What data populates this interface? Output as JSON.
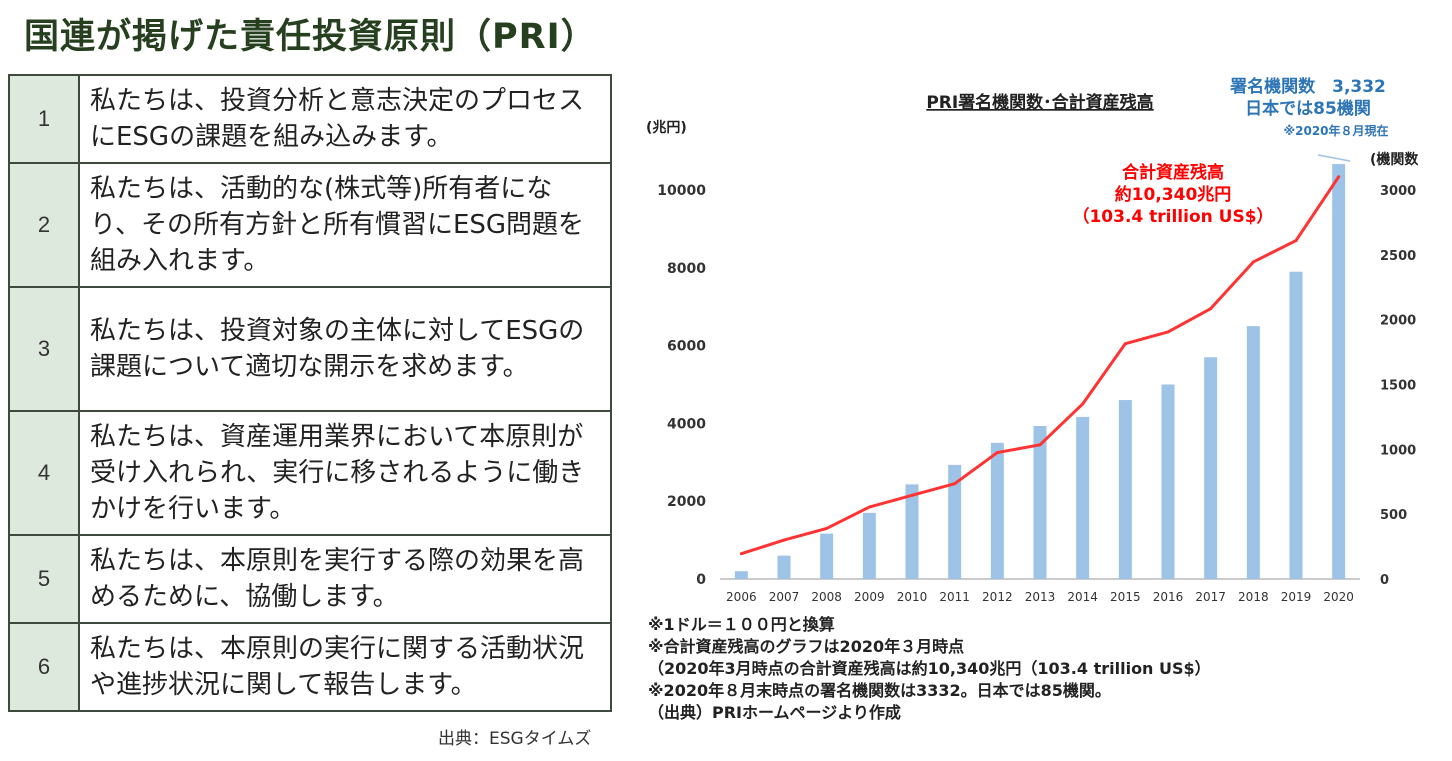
{
  "title": "国連が掲げた責任投資原則（PRI）",
  "principles": [
    {
      "num": "1",
      "text": "私たちは、投資分析と意志決定のプロセスにESGの課題を組み込みます。"
    },
    {
      "num": "2",
      "text": "私たちは、活動的な(株式等)所有者になり、その所有方針と所有慣習にESG問題を組み入れます。"
    },
    {
      "num": "3",
      "text": "私たちは、投資対象の主体に対してESGの課題について適切な開示を求めます。"
    },
    {
      "num": "4",
      "text": "私たちは、資産運用業界において本原則が受け入れられ、実行に移されるように働きかけを行います。"
    },
    {
      "num": "5",
      "text": "私たちは、本原則を実行する際の効果を高めるために、協働します。"
    },
    {
      "num": "6",
      "text": "私たちは、本原則の実行に関する活動状況や進捗状況に関して報告します。"
    }
  ],
  "source": "出典：ESGタイムズ",
  "chart_data": {
    "type": "bar",
    "title": "PRI署名機関数･合計資産残高",
    "categories": [
      "2006",
      "2007",
      "2008",
      "2009",
      "2010",
      "2011",
      "2012",
      "2013",
      "2014",
      "2015",
      "2016",
      "2017",
      "2018",
      "2019",
      "2020"
    ],
    "series": [
      {
        "name": "機関数",
        "kind": "bar",
        "axis": "right",
        "color": "#9dc3e6",
        "values": [
          60,
          180,
          350,
          510,
          730,
          880,
          1050,
          1180,
          1250,
          1380,
          1500,
          1710,
          1950,
          2370,
          3200
        ]
      },
      {
        "name": "合計資産残高",
        "kind": "line",
        "axis": "left",
        "color": "#ff3333",
        "values": [
          650,
          1000,
          1300,
          1850,
          2150,
          2450,
          3250,
          3450,
          4500,
          6050,
          6350,
          6950,
          8150,
          8700,
          10340
        ]
      }
    ],
    "left_axis": {
      "label": "(兆円)",
      "min": 0,
      "max": 10000,
      "ticks": [
        "0",
        "2000",
        "4000",
        "6000",
        "8000",
        "10000"
      ],
      "tick_values": [
        0,
        2000,
        4000,
        6000,
        8000,
        10000
      ]
    },
    "right_axis": {
      "label": "(機関数)",
      "min": 0,
      "max": 3000,
      "ticks": [
        "0",
        "500",
        "1000",
        "1500",
        "2000",
        "2500",
        "3000"
      ],
      "tick_values": [
        0,
        500,
        1000,
        1500,
        2000,
        2500,
        3000
      ]
    },
    "annotations": {
      "signatories": [
        "署名機関数　3,332",
        "日本では85機関"
      ],
      "signatories_note": "※2020年８月現在",
      "assets": [
        "合計資産残高",
        "約10,340兆円",
        "（103.4 trillion US$）"
      ]
    },
    "grid": false
  },
  "notes": [
    "※1ドル＝１００円と換算",
    "※合計資産残高のグラフは2020年３月時点",
    "（2020年3月時点の合計資産残高は約10,340兆円（103.4 trillion US$）",
    "※2020年８月末時点の署名機関数は3332。日本では85機関。",
    "（出典）PRIホームページより作成"
  ],
  "colors": {
    "title": "#263f1e",
    "number_cell": "#dde9dd",
    "border": "#3e4a3e",
    "annotation_blue": "#2e75b6",
    "annotation_red": "#ff0000"
  }
}
